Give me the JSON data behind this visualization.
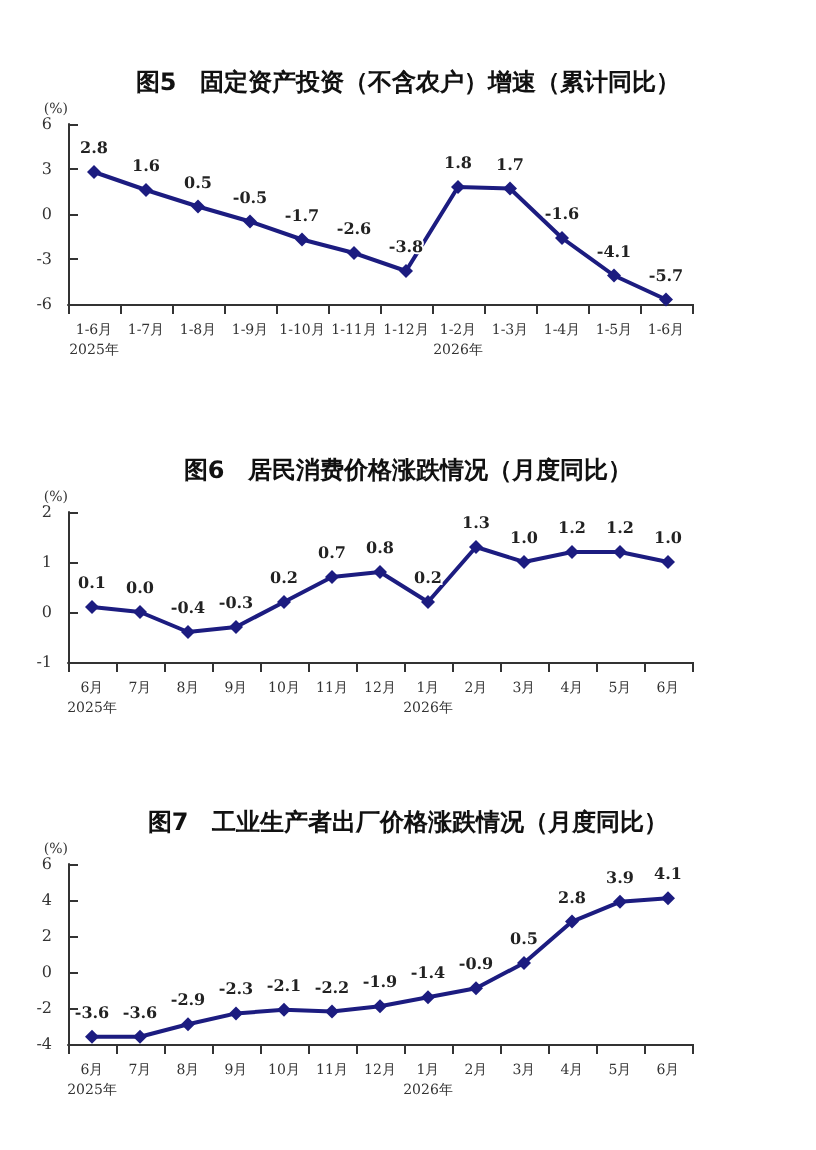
{
  "chart_data": [
    {
      "type": "line",
      "title": "图5　固定资产投资（不含农户）增速（累计同比）",
      "ylabel": "(%)",
      "categories": [
        "1-6月\n2025年",
        "1-7月",
        "1-8月",
        "1-9月",
        "1-10月",
        "1-11月",
        "1-12月",
        "1-2月\n2026年",
        "1-3月",
        "1-4月",
        "1-5月",
        "1-6月"
      ],
      "series": [
        {
          "color": "#1c1c80",
          "values": [
            2.8,
            1.6,
            0.5,
            -0.5,
            -1.7,
            -2.6,
            -3.8,
            1.8,
            1.7,
            -1.6,
            -4.1,
            -5.7
          ]
        }
      ],
      "ylim": [
        -6,
        6
      ],
      "yticks": [
        -6,
        -3,
        0,
        3,
        6
      ],
      "grid": false,
      "marker": "diamond",
      "line_style": "solid",
      "data_labels": true
    },
    {
      "type": "line",
      "title": "图6　居民消费价格涨跌情况（月度同比）",
      "ylabel": "(%)",
      "categories": [
        "6月\n2025年",
        "7月",
        "8月",
        "9月",
        "10月",
        "11月",
        "12月",
        "1月\n2026年",
        "2月",
        "3月",
        "4月",
        "5月",
        "6月"
      ],
      "series": [
        {
          "color": "#1c1c80",
          "values": [
            0.1,
            0.0,
            -0.4,
            -0.3,
            0.2,
            0.7,
            0.8,
            0.2,
            1.3,
            1.0,
            1.2,
            1.2,
            1.0
          ]
        }
      ],
      "value_labels": [
        "0.1",
        "0.0",
        "-0.4",
        "-0.3",
        "0.2",
        "0.7",
        "0.8",
        "0.2",
        "1.3",
        "1.0",
        "1.2",
        "1.2",
        "1.0"
      ],
      "ylim": [
        -1,
        2
      ],
      "yticks": [
        -1,
        0,
        1,
        2
      ],
      "grid": false,
      "marker": "diamond",
      "line_style": "solid"
    },
    {
      "type": "line",
      "title": "图7　工业生产者出厂价格涨跌情况（月度同比）",
      "ylabel": "(%)",
      "categories": [
        "6月\n2025年",
        "7月",
        "8月",
        "9月",
        "10月",
        "11月",
        "12月",
        "1月\n2026年",
        "2月",
        "3月",
        "4月",
        "5月",
        "6月"
      ],
      "series": [
        {
          "color": "#1c1c80",
          "values": [
            -3.6,
            -3.6,
            -2.9,
            -2.3,
            -2.1,
            -2.2,
            -1.9,
            -1.4,
            -0.9,
            0.5,
            2.8,
            3.9,
            4.1
          ]
        }
      ],
      "ylim": [
        -4,
        6
      ],
      "yticks": [
        -4,
        -2,
        0,
        2,
        4,
        6
      ],
      "grid": false,
      "marker": "diamond",
      "line_style": "solid",
      "data_labels": true
    }
  ]
}
